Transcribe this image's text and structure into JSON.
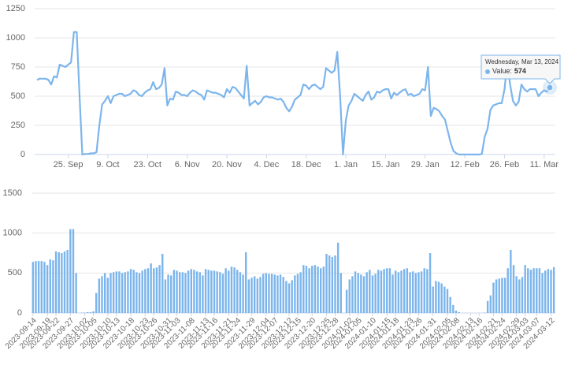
{
  "chart_data": [
    {
      "type": "line",
      "color": "#7cb5ec",
      "grid": true,
      "ylim": [
        0,
        1250
      ],
      "yticks": [
        0,
        250,
        500,
        750,
        1000,
        1250
      ],
      "xlim": [
        "2023-09-14",
        "2024-03-13"
      ],
      "xticks": [
        {
          "value": "2023-09-25",
          "label": "25. Sep"
        },
        {
          "value": "2023-10-09",
          "label": "9. Oct"
        },
        {
          "value": "2023-10-23",
          "label": "23. Oct"
        },
        {
          "value": "2023-11-06",
          "label": "6. Nov"
        },
        {
          "value": "2023-11-20",
          "label": "20. Nov"
        },
        {
          "value": "2023-12-04",
          "label": "4. Dec"
        },
        {
          "value": "2023-12-18",
          "label": "18. Dec"
        },
        {
          "value": "2024-01-01",
          "label": "1. Jan"
        },
        {
          "value": "2024-01-15",
          "label": "15. Jan"
        },
        {
          "value": "2024-01-29",
          "label": "29. Jan"
        },
        {
          "value": "2024-02-12",
          "label": "12. Feb"
        },
        {
          "value": "2024-02-26",
          "label": "26. Feb"
        },
        {
          "value": "2024-03-11",
          "label": "11. Mar"
        }
      ],
      "tooltip": {
        "header": "Wednesday, Mar 13, 2024",
        "label": "Value:",
        "value": 574
      },
      "x": [
        "2023-09-14",
        "2023-09-15",
        "2023-09-16",
        "2023-09-17",
        "2023-09-18",
        "2023-09-19",
        "2023-09-20",
        "2023-09-21",
        "2023-09-22",
        "2023-09-23",
        "2023-09-24",
        "2023-09-25",
        "2023-09-26",
        "2023-09-27",
        "2023-09-28",
        "2023-09-29",
        "2023-09-30",
        "2023-10-01",
        "2023-10-02",
        "2023-10-03",
        "2023-10-04",
        "2023-10-05",
        "2023-10-06",
        "2023-10-07",
        "2023-10-08",
        "2023-10-09",
        "2023-10-10",
        "2023-10-11",
        "2023-10-12",
        "2023-10-13",
        "2023-10-14",
        "2023-10-15",
        "2023-10-16",
        "2023-10-17",
        "2023-10-18",
        "2023-10-19",
        "2023-10-20",
        "2023-10-21",
        "2023-10-22",
        "2023-10-23",
        "2023-10-24",
        "2023-10-25",
        "2023-10-26",
        "2023-10-27",
        "2023-10-28",
        "2023-10-29",
        "2023-10-30",
        "2023-10-31",
        "2023-11-01",
        "2023-11-02",
        "2023-11-03",
        "2023-11-04",
        "2023-11-05",
        "2023-11-06",
        "2023-11-07",
        "2023-11-08",
        "2023-11-09",
        "2023-11-10",
        "2023-11-11",
        "2023-11-12",
        "2023-11-13",
        "2023-11-14",
        "2023-11-15",
        "2023-11-16",
        "2023-11-17",
        "2023-11-18",
        "2023-11-19",
        "2023-11-20",
        "2023-11-21",
        "2023-11-22",
        "2023-11-23",
        "2023-11-24",
        "2023-11-25",
        "2023-11-26",
        "2023-11-27",
        "2023-11-28",
        "2023-11-29",
        "2023-11-30",
        "2023-12-01",
        "2023-12-02",
        "2023-12-03",
        "2023-12-04",
        "2023-12-05",
        "2023-12-06",
        "2023-12-07",
        "2023-12-08",
        "2023-12-09",
        "2023-12-10",
        "2023-12-11",
        "2023-12-12",
        "2023-12-13",
        "2023-12-14",
        "2023-12-15",
        "2023-12-16",
        "2023-12-17",
        "2023-12-18",
        "2023-12-19",
        "2023-12-20",
        "2023-12-21",
        "2023-12-22",
        "2023-12-23",
        "2023-12-24",
        "2023-12-25",
        "2023-12-26",
        "2023-12-27",
        "2023-12-28",
        "2023-12-29",
        "2023-12-30",
        "2023-12-31",
        "2024-01-01",
        "2024-01-02",
        "2024-01-03",
        "2024-01-04",
        "2024-01-05",
        "2024-01-06",
        "2024-01-07",
        "2024-01-08",
        "2024-01-09",
        "2024-01-10",
        "2024-01-11",
        "2024-01-12",
        "2024-01-13",
        "2024-01-14",
        "2024-01-15",
        "2024-01-16",
        "2024-01-17",
        "2024-01-18",
        "2024-01-19",
        "2024-01-20",
        "2024-01-21",
        "2024-01-22",
        "2024-01-23",
        "2024-01-24",
        "2024-01-25",
        "2024-01-26",
        "2024-01-27",
        "2024-01-28",
        "2024-01-29",
        "2024-01-30",
        "2024-01-31",
        "2024-02-01",
        "2024-02-02",
        "2024-02-03",
        "2024-02-04",
        "2024-02-05",
        "2024-02-06",
        "2024-02-07",
        "2024-02-08",
        "2024-02-09",
        "2024-02-10",
        "2024-02-11",
        "2024-02-12",
        "2024-02-13",
        "2024-02-14",
        "2024-02-15",
        "2024-02-16",
        "2024-02-17",
        "2024-02-18",
        "2024-02-19",
        "2024-02-20",
        "2024-02-21",
        "2024-02-22",
        "2024-02-23",
        "2024-02-24",
        "2024-02-25",
        "2024-02-26",
        "2024-02-27",
        "2024-02-28",
        "2024-02-29",
        "2024-03-01",
        "2024-03-02",
        "2024-03-03",
        "2024-03-04",
        "2024-03-05",
        "2024-03-06",
        "2024-03-07",
        "2024-03-08",
        "2024-03-09",
        "2024-03-10",
        "2024-03-11",
        "2024-03-12",
        "2024-03-13"
      ],
      "values": [
        640,
        650,
        650,
        650,
        640,
        600,
        670,
        660,
        770,
        760,
        750,
        770,
        790,
        1050,
        1050,
        500,
        0,
        5,
        5,
        10,
        10,
        20,
        250,
        430,
        460,
        500,
        440,
        500,
        510,
        520,
        520,
        500,
        510,
        520,
        550,
        540,
        510,
        500,
        530,
        550,
        560,
        620,
        560,
        570,
        600,
        740,
        420,
        480,
        470,
        540,
        530,
        510,
        510,
        500,
        530,
        550,
        540,
        520,
        510,
        470,
        550,
        540,
        530,
        530,
        520,
        510,
        490,
        560,
        530,
        580,
        570,
        540,
        510,
        480,
        760,
        420,
        440,
        460,
        430,
        450,
        490,
        500,
        490,
        490,
        480,
        470,
        480,
        450,
        400,
        370,
        410,
        470,
        490,
        510,
        600,
        590,
        560,
        590,
        600,
        580,
        560,
        580,
        740,
        720,
        700,
        720,
        880,
        500,
        0,
        290,
        420,
        460,
        520,
        500,
        480,
        460,
        510,
        540,
        470,
        490,
        540,
        530,
        550,
        560,
        560,
        480,
        530,
        510,
        530,
        550,
        560,
        510,
        520,
        500,
        510,
        520,
        560,
        550,
        750,
        330,
        400,
        390,
        370,
        330,
        300,
        200,
        100,
        30,
        10,
        0,
        0,
        0,
        0,
        0,
        0,
        0,
        0,
        5,
        150,
        220,
        380,
        420,
        430,
        440,
        440,
        560,
        790,
        600,
        460,
        420,
        450,
        600,
        560,
        540,
        560,
        560,
        560,
        500,
        530,
        550,
        540,
        574
      ]
    },
    {
      "type": "bar",
      "color": "#7cb5ec",
      "grid": true,
      "ylim": [
        0,
        1500
      ],
      "yticks": [
        0,
        500,
        1000,
        1500
      ],
      "categories": [
        "2023-09-14",
        null,
        null,
        null,
        null,
        "2023-09-19",
        null,
        null,
        "2023-09-22",
        null,
        null,
        null,
        null,
        "2023-09-27",
        null,
        null,
        null,
        null,
        "2023-10-02",
        null,
        null,
        "2023-10-05",
        null,
        null,
        null,
        null,
        "2023-10-10",
        null,
        null,
        "2023-10-13",
        null,
        null,
        null,
        null,
        "2023-10-18",
        null,
        null,
        null,
        null,
        "2023-10-23",
        null,
        null,
        "2023-10-26",
        null,
        null,
        null,
        null,
        "2023-10-31",
        null,
        null,
        "2023-11-03",
        null,
        null,
        null,
        null,
        "2023-11-08",
        null,
        null,
        null,
        null,
        "2023-11-13",
        null,
        null,
        "2023-11-16",
        null,
        null,
        null,
        null,
        "2023-11-21",
        null,
        null,
        "2023-11-24",
        null,
        null,
        null,
        null,
        "2023-11-29",
        null,
        null,
        null,
        null,
        "2023-12-04",
        null,
        null,
        "2023-12-07",
        null,
        null,
        null,
        null,
        "2023-12-12",
        null,
        null,
        "2023-12-15",
        null,
        null,
        null,
        null,
        "2023-12-20",
        null,
        null,
        null,
        null,
        "2023-12-25",
        null,
        null,
        "2023-12-28",
        null,
        null,
        null,
        null,
        "2024-01-02",
        null,
        null,
        "2024-01-05",
        null,
        null,
        null,
        null,
        "2024-01-10",
        null,
        null,
        null,
        null,
        "2024-01-15",
        null,
        null,
        "2024-01-18",
        null,
        null,
        null,
        null,
        "2024-01-23",
        null,
        null,
        "2024-01-26",
        null,
        null,
        null,
        null,
        "2024-01-31",
        null,
        null,
        null,
        null,
        "2024-02-05",
        null,
        null,
        "2024-02-08",
        null,
        null,
        null,
        null,
        "2024-02-13",
        null,
        null,
        "2024-02-16",
        null,
        null,
        null,
        null,
        "2024-02-21",
        null,
        null,
        "2024-02-24",
        null,
        null,
        null,
        null,
        "2024-02-29",
        null,
        null,
        "2024-03-03",
        null,
        null,
        null,
        "2024-03-07",
        null,
        null,
        null,
        null,
        "2024-03-12",
        null
      ],
      "values": [
        640,
        650,
        650,
        650,
        640,
        600,
        670,
        660,
        770,
        760,
        750,
        770,
        790,
        1050,
        1050,
        500,
        0,
        5,
        5,
        10,
        10,
        20,
        250,
        430,
        460,
        500,
        440,
        500,
        510,
        520,
        520,
        500,
        510,
        520,
        550,
        540,
        510,
        500,
        530,
        550,
        560,
        620,
        560,
        570,
        600,
        740,
        420,
        480,
        470,
        540,
        530,
        510,
        510,
        500,
        530,
        550,
        540,
        520,
        510,
        470,
        550,
        540,
        530,
        530,
        520,
        510,
        490,
        560,
        530,
        580,
        570,
        540,
        510,
        480,
        760,
        420,
        440,
        460,
        430,
        450,
        490,
        500,
        490,
        490,
        480,
        470,
        480,
        450,
        400,
        370,
        410,
        470,
        490,
        510,
        600,
        590,
        560,
        590,
        600,
        580,
        560,
        580,
        740,
        720,
        700,
        720,
        880,
        500,
        0,
        290,
        420,
        460,
        520,
        500,
        480,
        460,
        510,
        540,
        470,
        490,
        540,
        530,
        550,
        560,
        560,
        480,
        530,
        510,
        530,
        550,
        560,
        510,
        520,
        500,
        510,
        520,
        560,
        550,
        750,
        330,
        400,
        390,
        370,
        330,
        300,
        200,
        100,
        30,
        10,
        0,
        0,
        0,
        0,
        0,
        0,
        0,
        0,
        5,
        150,
        220,
        380,
        420,
        430,
        440,
        440,
        560,
        790,
        600,
        460,
        420,
        450,
        600,
        560,
        540,
        560,
        560,
        560,
        500,
        530,
        550,
        540,
        574
      ]
    }
  ]
}
